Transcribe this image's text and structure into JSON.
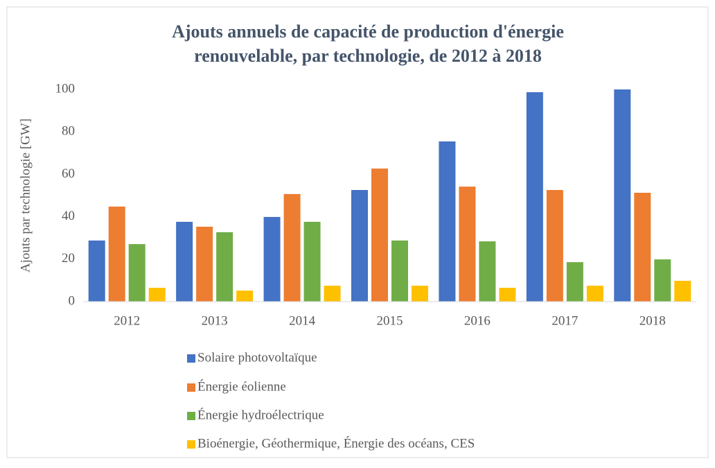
{
  "chart_data": {
    "type": "bar",
    "title": [
      "Ajouts annuels de capacité de production d'énergie",
      "renouvelable, par technologie, de 2012 à 2018"
    ],
    "y_label": "Ajouts par technologie [GW]",
    "categories": [
      "2012",
      "2013",
      "2014",
      "2015",
      "2016",
      "2017",
      "2018"
    ],
    "series": [
      {
        "name": "Solaire photovoltaïque",
        "color": "#4472c4",
        "values": [
          28.8,
          37.6,
          39.9,
          52.6,
          75.5,
          98.7,
          100
        ]
      },
      {
        "name": "Énergie éolienne",
        "color": "#ed7d31",
        "values": [
          44.8,
          35.3,
          50.7,
          62.7,
          54.2,
          52.6,
          51.3
        ]
      },
      {
        "name": "Énergie hydroélectrique",
        "color": "#70ad47",
        "values": [
          27.1,
          32.7,
          37.6,
          28.8,
          28.4,
          18.6,
          19.9
        ]
      },
      {
        "name": "Bioénergie, Géothermique, Énergie des océans, CES",
        "color": "#ffc000",
        "values": [
          6.5,
          5.2,
          7.5,
          7.5,
          6.5,
          7.5,
          9.8
        ]
      }
    ],
    "ylim": [
      0,
      100
    ],
    "yticks": [
      0,
      20,
      40,
      60,
      80,
      100
    ],
    "grid": false,
    "legend": "bottom"
  }
}
